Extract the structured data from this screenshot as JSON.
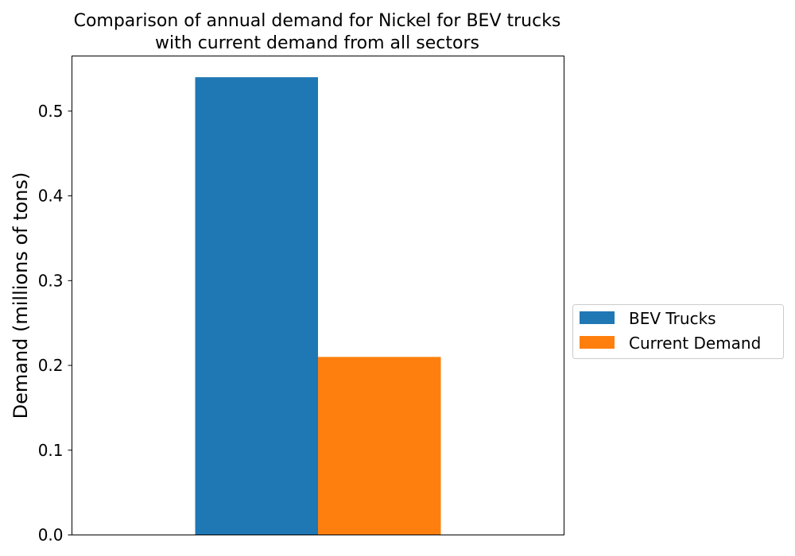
{
  "chart_data": {
    "type": "bar",
    "title": [
      "Comparison of annual demand for Nickel for BEV trucks",
      "with current demand from all sectors"
    ],
    "ylabel": "Demand (millions of tons)",
    "xlabel": "",
    "ylim": [
      0,
      0.565
    ],
    "yticks": [
      "0.0",
      "0.1",
      "0.2",
      "0.3",
      "0.4",
      "0.5"
    ],
    "grid": false,
    "legend_position": "right",
    "series": [
      {
        "name": "BEV Trucks",
        "value": 0.54,
        "color": "#1f77b4"
      },
      {
        "name": "Current Demand",
        "value": 0.21,
        "color": "#ff7f0e"
      }
    ]
  }
}
